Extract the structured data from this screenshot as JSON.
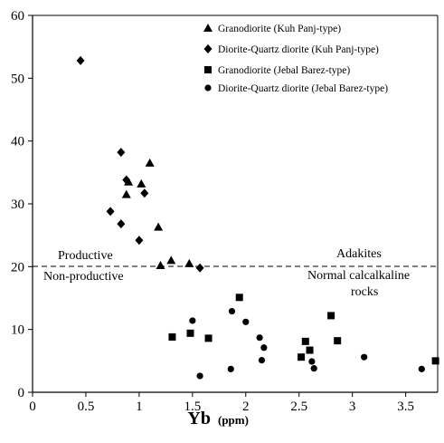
{
  "chart_data": {
    "type": "scatter",
    "title": "",
    "xlabel": "Yb",
    "xlabel_unit": "(ppm)",
    "ylabel": "",
    "xlim": [
      0,
      3.8
    ],
    "ylim": [
      0,
      60
    ],
    "x_ticks": [
      "0",
      "0.5",
      "1",
      "1.5",
      "2",
      "2.5",
      "3",
      "3.5"
    ],
    "y_ticks": [
      "0",
      "10",
      "20",
      "30",
      "40",
      "50",
      "60"
    ],
    "grid": false,
    "legend_position": "top-right",
    "reference_line": {
      "y": 20,
      "style": "dashed"
    },
    "annotations": [
      "Productive",
      "Non-productive",
      "Adakites",
      "Normal calcalkaline",
      "rocks"
    ],
    "series": [
      {
        "name": "Granodiorite (Kuh Panj-type)",
        "marker": "triangle",
        "points": [
          [
            0.88,
            31.5
          ],
          [
            0.9,
            33.5
          ],
          [
            1.02,
            33.2
          ],
          [
            1.1,
            36.5
          ],
          [
            1.18,
            26.3
          ],
          [
            1.2,
            20.2
          ],
          [
            1.3,
            21.0
          ],
          [
            1.47,
            20.5
          ]
        ]
      },
      {
        "name": "Diorite-Quartz diorite (Kuh Panj-type)",
        "marker": "diamond",
        "points": [
          [
            0.45,
            52.8
          ],
          [
            0.73,
            28.8
          ],
          [
            0.83,
            38.2
          ],
          [
            0.83,
            26.8
          ],
          [
            0.88,
            33.8
          ],
          [
            1.0,
            24.2
          ],
          [
            1.05,
            31.7
          ],
          [
            1.57,
            19.8
          ]
        ]
      },
      {
        "name": "Granodiorite (Jebal Barez-type)",
        "marker": "square",
        "points": [
          [
            1.31,
            8.8
          ],
          [
            1.48,
            9.4
          ],
          [
            1.65,
            8.6
          ],
          [
            1.94,
            15.1
          ],
          [
            2.52,
            5.6
          ],
          [
            2.56,
            8.1
          ],
          [
            2.6,
            6.7
          ],
          [
            2.8,
            12.2
          ],
          [
            2.86,
            8.2
          ],
          [
            3.78,
            5.0
          ]
        ]
      },
      {
        "name": "Diorite-Quartz diorite (Jebal Barez-type)",
        "marker": "circle",
        "points": [
          [
            1.5,
            11.4
          ],
          [
            1.57,
            2.6
          ],
          [
            1.86,
            3.7
          ],
          [
            1.87,
            12.9
          ],
          [
            2.0,
            11.2
          ],
          [
            2.13,
            8.7
          ],
          [
            2.15,
            5.1
          ],
          [
            2.17,
            7.1
          ],
          [
            2.62,
            4.9
          ],
          [
            2.64,
            3.8
          ],
          [
            3.11,
            5.6
          ],
          [
            3.65,
            3.7
          ]
        ]
      }
    ]
  }
}
